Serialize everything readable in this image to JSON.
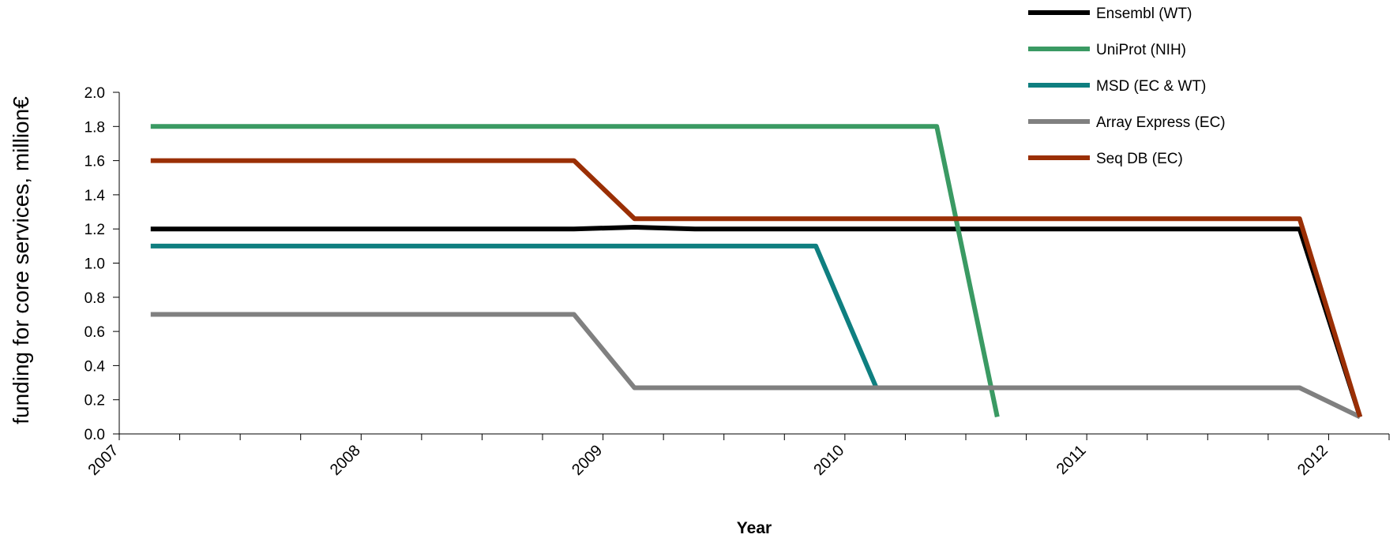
{
  "chart_data": {
    "type": "line",
    "title": "",
    "xlabel": "Year",
    "ylabel": "funding for core services, million€",
    "xlim": [
      2007,
      2012.25
    ],
    "ylim": [
      0,
      2.0
    ],
    "y_ticks": [
      0.0,
      0.2,
      0.4,
      0.6,
      0.8,
      1.0,
      1.2,
      1.4,
      1.6,
      1.8,
      2.0
    ],
    "y_tick_labels": [
      "0.0",
      "0.2",
      "0.4",
      "0.6",
      "0.8",
      "1.0",
      "1.2",
      "1.4",
      "1.6",
      "1.8",
      "2.0"
    ],
    "x_ticks": [
      2007,
      2008,
      2009,
      2010,
      2011,
      2012
    ],
    "x_tick_labels": [
      "2007",
      "2008",
      "2009",
      "2010",
      "2011",
      "2012"
    ],
    "x_minor_tick_step": 0.25,
    "grid": false,
    "legend_position": "top-right",
    "series": [
      {
        "name": "Ensembl (WT)",
        "color": "#000000",
        "points": [
          [
            2007.13,
            1.2
          ],
          [
            2008.88,
            1.2
          ],
          [
            2009.13,
            1.21
          ],
          [
            2009.38,
            1.2
          ],
          [
            2011.88,
            1.2
          ],
          [
            2012.13,
            0.1
          ]
        ]
      },
      {
        "name": "UniProt (NIH)",
        "color": "#3a9a63",
        "points": [
          [
            2007.13,
            1.8
          ],
          [
            2010.38,
            1.8
          ],
          [
            2010.63,
            0.1
          ]
        ]
      },
      {
        "name": "MSD (EC & WT)",
        "color": "#0f7f80",
        "points": [
          [
            2007.13,
            1.1
          ],
          [
            2009.88,
            1.1
          ],
          [
            2010.13,
            0.27
          ]
        ]
      },
      {
        "name": "Array Express (EC)",
        "color": "#808080",
        "points": [
          [
            2007.13,
            0.7
          ],
          [
            2008.88,
            0.7
          ],
          [
            2009.13,
            0.27
          ],
          [
            2011.88,
            0.27
          ],
          [
            2012.13,
            0.1
          ]
        ]
      },
      {
        "name": "Seq DB (EC)",
        "color": "#9a2f05",
        "points": [
          [
            2007.13,
            1.6
          ],
          [
            2008.88,
            1.6
          ],
          [
            2009.13,
            1.26
          ],
          [
            2011.88,
            1.26
          ],
          [
            2012.13,
            0.1
          ]
        ]
      }
    ]
  }
}
